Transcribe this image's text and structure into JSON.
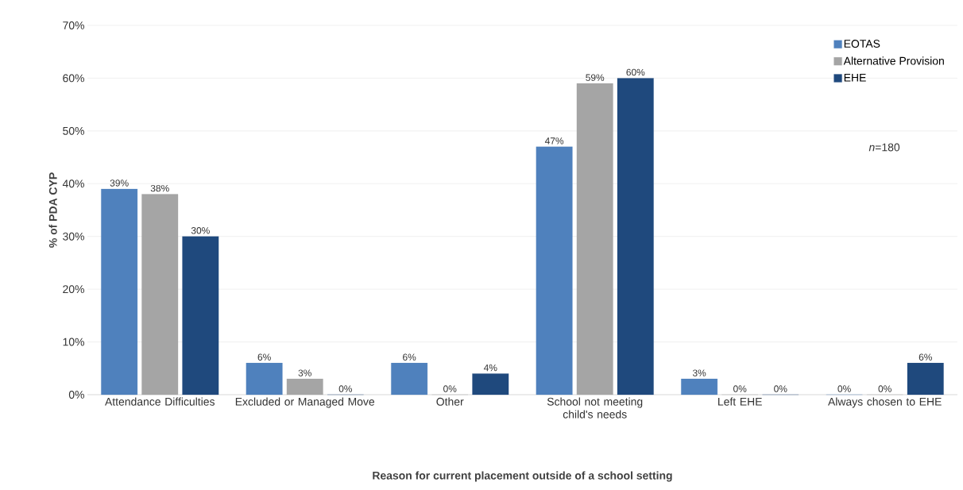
{
  "chart_data": {
    "type": "bar",
    "xlabel": "Reason for current placement outside of a school setting",
    "ylabel": "% of PDA CYP",
    "categories": [
      "Attendance Difficulties",
      "Excluded or Managed Move",
      "Other",
      "School not meeting child's needs",
      "Left EHE",
      "Always chosen to EHE"
    ],
    "series": [
      {
        "name": "EOTAS",
        "color": "#4f81bd",
        "values": [
          39,
          6,
          6,
          47,
          3,
          0
        ],
        "value_labels": [
          "39%",
          "6%",
          "6%",
          "47%",
          "3%",
          "0%"
        ]
      },
      {
        "name": "Alternative Provision",
        "color": "#a5a5a5",
        "values": [
          38,
          3,
          0,
          59,
          0,
          0
        ],
        "value_labels": [
          "38%",
          "3%",
          "0%",
          "59%",
          "0%",
          "0%"
        ]
      },
      {
        "name": "EHE",
        "color": "#1f497d",
        "values": [
          30,
          0,
          4,
          60,
          0,
          6
        ],
        "value_labels": [
          "30%",
          "0%",
          "4%",
          "60%",
          "0%",
          "6%"
        ]
      }
    ],
    "ylim": [
      0,
      70
    ],
    "yticks": [
      {
        "value": 0,
        "label": "0%"
      },
      {
        "value": 10,
        "label": "10%"
      },
      {
        "value": 20,
        "label": "20%"
      },
      {
        "value": 30,
        "label": "30%"
      },
      {
        "value": 40,
        "label": "40%"
      },
      {
        "value": 50,
        "label": "50%"
      },
      {
        "value": 60,
        "label": "60%"
      },
      {
        "value": 70,
        "label": "70%"
      }
    ],
    "grid": "y",
    "legend": "top right",
    "annotations": [
      "*n*=180"
    ]
  }
}
